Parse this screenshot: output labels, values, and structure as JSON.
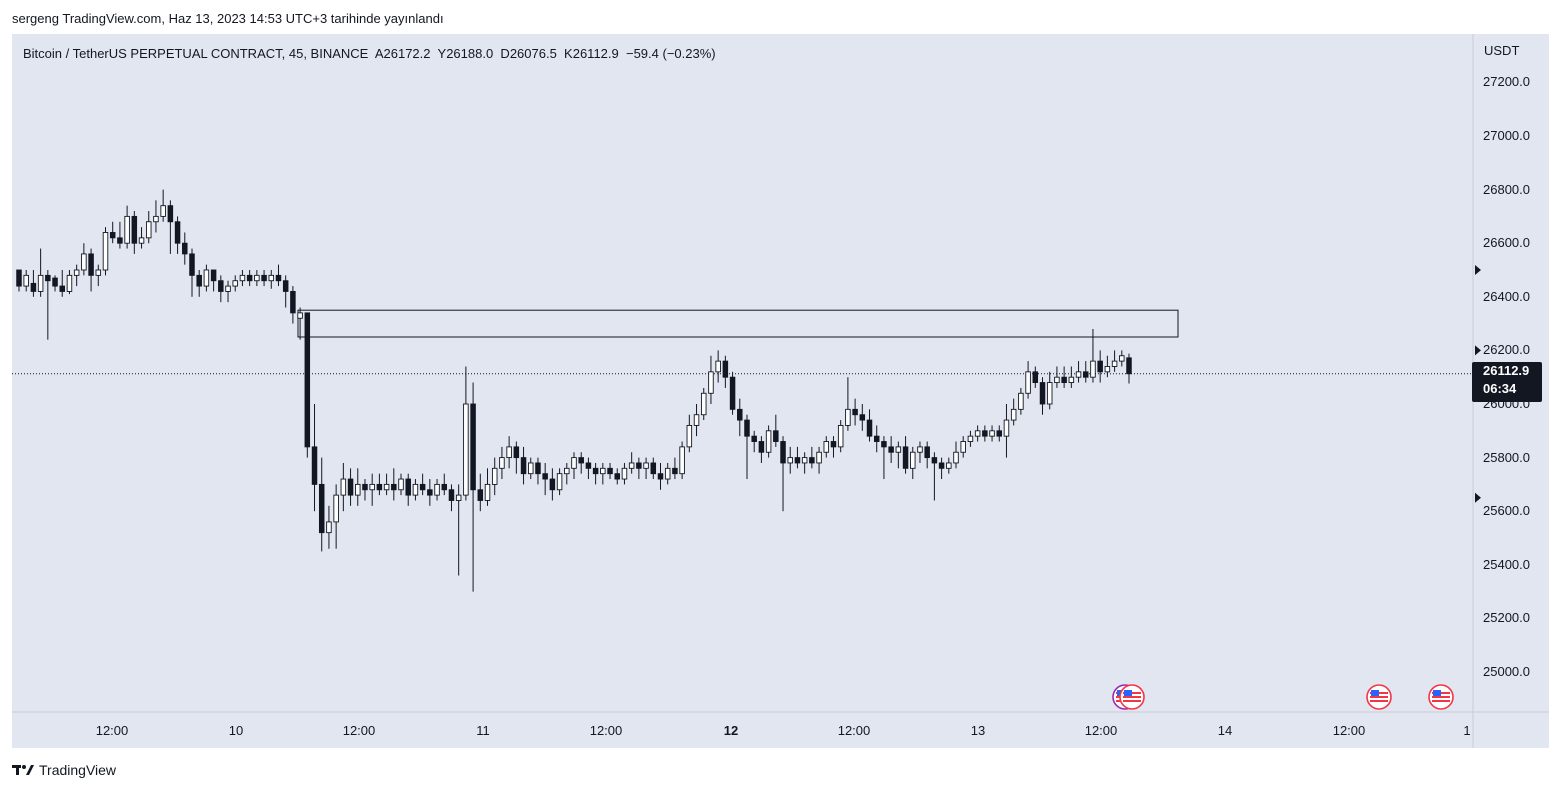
{
  "header": {
    "published_line": "sergeng TradingView.com, Haz 13, 2023 14:53 UTC+3 tarihinde yayınlandı"
  },
  "legend": {
    "symbol": "Bitcoin / TetherUS PERPETUAL CONTRACT, 45, BINANCE",
    "open_label": "A",
    "open": "26172.2",
    "high_label": "Y",
    "high": "26188.0",
    "low_label": "D",
    "low": "26076.5",
    "close_label": "K",
    "close": "26112.9",
    "change": "−59.4 (−0.23%)"
  },
  "price_axis": {
    "currency": "USDT",
    "ticks": [
      "27200.0",
      "27000.0",
      "26800.0",
      "26600.0",
      "26400.0",
      "26200.0",
      "26000.0",
      "25800.0",
      "25600.0",
      "25400.0",
      "25200.0",
      "25000.0"
    ]
  },
  "time_axis": {
    "ticks": [
      {
        "label": "12:00",
        "bold": false
      },
      {
        "label": "10",
        "bold": false
      },
      {
        "label": "12:00",
        "bold": false
      },
      {
        "label": "11",
        "bold": false
      },
      {
        "label": "12:00",
        "bold": false
      },
      {
        "label": "12",
        "bold": true
      },
      {
        "label": "12:00",
        "bold": false
      },
      {
        "label": "13",
        "bold": false
      },
      {
        "label": "12:00",
        "bold": false
      },
      {
        "label": "14",
        "bold": false
      },
      {
        "label": "12:00",
        "bold": false
      },
      {
        "label": "1",
        "bold": false
      }
    ]
  },
  "price_badge": {
    "price": "26112.9",
    "countdown": "06:34"
  },
  "footer": {
    "brand": "TradingView"
  },
  "colors": {
    "background": "#e2e6f0",
    "candle_up": "#ffffff",
    "candle_down": "#131722",
    "wick": "#131722"
  },
  "icons": [
    "us-flag-event-icon",
    "tradingview-logo-icon"
  ],
  "chart_data": {
    "type": "candlestick",
    "symbol": "BTCUSDT.P",
    "timeframe": "45",
    "ylim": [
      24900,
      27300
    ],
    "grid": false,
    "last_price": 26112.9,
    "zone": {
      "low": 26250,
      "high": 26350
    },
    "candles": [
      [
        26500,
        26480,
        26420,
        26440
      ],
      [
        26440,
        26500,
        26420,
        26480
      ],
      [
        26450,
        26500,
        26400,
        26420
      ],
      [
        26420,
        26580,
        26400,
        26480
      ],
      [
        26480,
        26500,
        26240,
        26460
      ],
      [
        26470,
        26480,
        26420,
        26440
      ],
      [
        26440,
        26500,
        26400,
        26420
      ],
      [
        26420,
        26500,
        26410,
        26480
      ],
      [
        26480,
        26520,
        26440,
        26500
      ],
      [
        26500,
        26600,
        26480,
        26560
      ],
      [
        26560,
        26580,
        26420,
        26480
      ],
      [
        26480,
        26520,
        26440,
        26500
      ],
      [
        26500,
        26660,
        26480,
        26640
      ],
      [
        26640,
        26680,
        26600,
        26620
      ],
      [
        26620,
        26680,
        26580,
        26600
      ],
      [
        26600,
        26740,
        26580,
        26700
      ],
      [
        26700,
        26720,
        26560,
        26600
      ],
      [
        26600,
        26660,
        26580,
        26620
      ],
      [
        26620,
        26720,
        26600,
        26680
      ],
      [
        26680,
        26760,
        26640,
        26700
      ],
      [
        26700,
        26800,
        26680,
        26740
      ],
      [
        26740,
        26760,
        26560,
        26680
      ],
      [
        26680,
        26700,
        26560,
        26600
      ],
      [
        26600,
        26640,
        26520,
        26560
      ],
      [
        26560,
        26580,
        26400,
        26480
      ],
      [
        26480,
        26500,
        26400,
        26440
      ],
      [
        26440,
        26520,
        26420,
        26500
      ],
      [
        26500,
        26500,
        26420,
        26460
      ],
      [
        26460,
        26480,
        26380,
        26420
      ],
      [
        26420,
        26460,
        26380,
        26440
      ],
      [
        26440,
        26480,
        26420,
        26460
      ],
      [
        26460,
        26500,
        26440,
        26480
      ],
      [
        26480,
        26500,
        26440,
        26460
      ],
      [
        26460,
        26500,
        26440,
        26480
      ],
      [
        26480,
        26500,
        26440,
        26460
      ],
      [
        26460,
        26500,
        26430,
        26480
      ],
      [
        26480,
        26520,
        26440,
        26460
      ],
      [
        26460,
        26480,
        26360,
        26420
      ],
      [
        26420,
        26440,
        26300,
        26340
      ],
      [
        26320,
        26360,
        26240,
        26340
      ],
      [
        26340,
        26340,
        25800,
        25840
      ],
      [
        25840,
        26000,
        25600,
        25700
      ],
      [
        25700,
        25800,
        25450,
        25520
      ],
      [
        25520,
        25620,
        25460,
        25560
      ],
      [
        25560,
        25700,
        25460,
        25660
      ],
      [
        25660,
        25780,
        25600,
        25720
      ],
      [
        25720,
        25760,
        25620,
        25660
      ],
      [
        25660,
        25760,
        25620,
        25700
      ],
      [
        25700,
        25720,
        25640,
        25680
      ],
      [
        25680,
        25740,
        25620,
        25700
      ],
      [
        25700,
        25740,
        25660,
        25680
      ],
      [
        25680,
        25740,
        25660,
        25700
      ],
      [
        25700,
        25760,
        25640,
        25680
      ],
      [
        25680,
        25740,
        25660,
        25720
      ],
      [
        25720,
        25740,
        25620,
        25660
      ],
      [
        25660,
        25720,
        25640,
        25700
      ],
      [
        25700,
        25740,
        25660,
        25680
      ],
      [
        25680,
        25720,
        25620,
        25660
      ],
      [
        25660,
        25720,
        25640,
        25700
      ],
      [
        25700,
        25740,
        25660,
        25680
      ],
      [
        25680,
        25700,
        25600,
        25640
      ],
      [
        25640,
        25700,
        25360,
        25660
      ],
      [
        25660,
        26140,
        25640,
        26000
      ],
      [
        26000,
        26080,
        25300,
        25680
      ],
      [
        25680,
        25740,
        25600,
        25640
      ],
      [
        25640,
        25760,
        25620,
        25700
      ],
      [
        25700,
        25800,
        25660,
        25760
      ],
      [
        25760,
        25840,
        25720,
        25800
      ],
      [
        25800,
        25880,
        25760,
        25840
      ],
      [
        25840,
        25860,
        25740,
        25800
      ],
      [
        25800,
        25840,
        25700,
        25740
      ],
      [
        25740,
        25800,
        25720,
        25780
      ],
      [
        25780,
        25800,
        25700,
        25740
      ],
      [
        25740,
        25780,
        25660,
        25720
      ],
      [
        25720,
        25760,
        25640,
        25680
      ],
      [
        25680,
        25760,
        25660,
        25740
      ],
      [
        25740,
        25780,
        25700,
        25760
      ],
      [
        25760,
        25820,
        25720,
        25800
      ],
      [
        25800,
        25820,
        25740,
        25780
      ],
      [
        25780,
        25800,
        25720,
        25760
      ],
      [
        25760,
        25780,
        25700,
        25740
      ],
      [
        25740,
        25780,
        25700,
        25760
      ],
      [
        25760,
        25780,
        25720,
        25740
      ],
      [
        25740,
        25760,
        25700,
        25720
      ],
      [
        25720,
        25780,
        25700,
        25760
      ],
      [
        25760,
        25820,
        25740,
        25780
      ],
      [
        25780,
        25800,
        25720,
        25760
      ],
      [
        25760,
        25800,
        25720,
        25780
      ],
      [
        25780,
        25800,
        25720,
        25740
      ],
      [
        25740,
        25780,
        25680,
        25720
      ],
      [
        25720,
        25780,
        25700,
        25760
      ],
      [
        25760,
        25800,
        25720,
        25740
      ],
      [
        25740,
        25860,
        25720,
        25840
      ],
      [
        25840,
        25960,
        25820,
        25920
      ],
      [
        25920,
        26000,
        25880,
        25960
      ],
      [
        25960,
        26060,
        25940,
        26040
      ],
      [
        26040,
        26180,
        26000,
        26120
      ],
      [
        26120,
        26200,
        26080,
        26160
      ],
      [
        26160,
        26180,
        26060,
        26100
      ],
      [
        26100,
        26120,
        25960,
        25980
      ],
      [
        25980,
        26020,
        25880,
        25940
      ],
      [
        25940,
        25960,
        25720,
        25880
      ],
      [
        25880,
        25900,
        25820,
        25860
      ],
      [
        25860,
        25880,
        25780,
        25820
      ],
      [
        25820,
        25920,
        25800,
        25900
      ],
      [
        25900,
        25960,
        25840,
        25860
      ],
      [
        25860,
        25880,
        25600,
        25780
      ],
      [
        25780,
        25840,
        25740,
        25800
      ],
      [
        25800,
        25840,
        25760,
        25780
      ],
      [
        25780,
        25820,
        25740,
        25800
      ],
      [
        25800,
        25840,
        25760,
        25780
      ],
      [
        25780,
        25840,
        25740,
        25820
      ],
      [
        25820,
        25880,
        25800,
        25860
      ],
      [
        25860,
        25880,
        25800,
        25840
      ],
      [
        25840,
        25940,
        25820,
        25920
      ],
      [
        25920,
        26100,
        25900,
        25980
      ],
      [
        25980,
        26020,
        25920,
        25960
      ],
      [
        25960,
        26000,
        25900,
        25940
      ],
      [
        25940,
        25980,
        25860,
        25880
      ],
      [
        25880,
        25920,
        25820,
        25860
      ],
      [
        25860,
        25880,
        25720,
        25840
      ],
      [
        25840,
        25880,
        25780,
        25820
      ],
      [
        25820,
        25860,
        25760,
        25840
      ],
      [
        25840,
        25880,
        25740,
        25760
      ],
      [
        25760,
        25840,
        25720,
        25820
      ],
      [
        25820,
        25860,
        25780,
        25840
      ],
      [
        25840,
        25860,
        25760,
        25800
      ],
      [
        25800,
        25820,
        25640,
        25780
      ],
      [
        25780,
        25800,
        25720,
        25760
      ],
      [
        25760,
        25800,
        25740,
        25780
      ],
      [
        25780,
        25860,
        25760,
        25820
      ],
      [
        25820,
        25880,
        25800,
        25860
      ],
      [
        25860,
        25900,
        25840,
        25880
      ],
      [
        25880,
        25920,
        25860,
        25900
      ],
      [
        25900,
        25920,
        25860,
        25880
      ],
      [
        25880,
        25920,
        25860,
        25900
      ],
      [
        25900,
        25920,
        25860,
        25880
      ],
      [
        25880,
        26000,
        25800,
        25940
      ],
      [
        25940,
        26020,
        25920,
        25980
      ],
      [
        25980,
        26060,
        25960,
        26040
      ],
      [
        26040,
        26160,
        26020,
        26120
      ],
      [
        26120,
        26140,
        26060,
        26080
      ],
      [
        26080,
        26100,
        25960,
        26000
      ],
      [
        26000,
        26120,
        25980,
        26080
      ],
      [
        26080,
        26140,
        26060,
        26100
      ],
      [
        26100,
        26140,
        26060,
        26080
      ],
      [
        26080,
        26140,
        26060,
        26100
      ],
      [
        26100,
        26160,
        26080,
        26120
      ],
      [
        26120,
        26160,
        26080,
        26100
      ],
      [
        26100,
        26280,
        26080,
        26160
      ],
      [
        26160,
        26200,
        26080,
        26120
      ],
      [
        26120,
        26180,
        26100,
        26140
      ],
      [
        26140,
        26200,
        26120,
        26160
      ],
      [
        26160,
        26200,
        26140,
        26180
      ],
      [
        26172.2,
        26188.0,
        26076.5,
        26112.9
      ]
    ]
  }
}
